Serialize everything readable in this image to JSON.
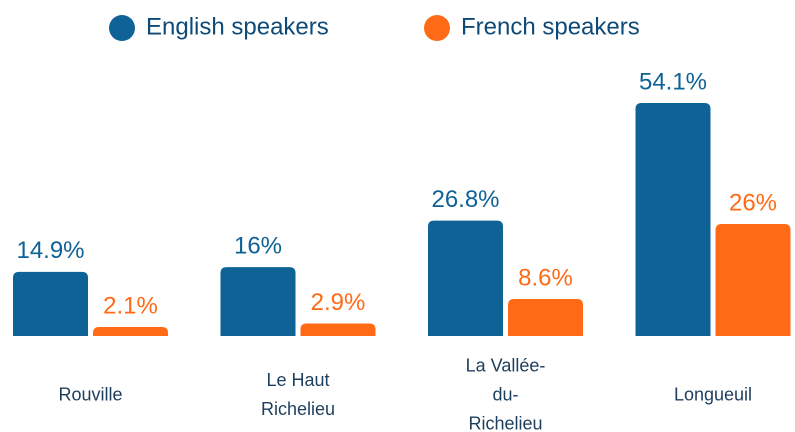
{
  "chart_data": {
    "type": "bar",
    "categories": [
      "Rouville",
      "Le Haut Richelieu",
      "La Vallée-du-Richelieu",
      "Longueuil"
    ],
    "series": [
      {
        "name": "English speakers",
        "color": "#0e6295",
        "values": [
          14.9,
          16,
          26.8,
          54.1
        ],
        "value_labels": [
          "14.9%",
          "16%",
          "26.8%",
          "54.1%"
        ]
      },
      {
        "name": "French speakers",
        "color": "#ff6a17",
        "values": [
          2.1,
          2.9,
          8.6,
          26
        ],
        "value_labels": [
          "2.1%",
          "2.9%",
          "8.6%",
          "26%"
        ]
      }
    ],
    "legend": "top"
  }
}
